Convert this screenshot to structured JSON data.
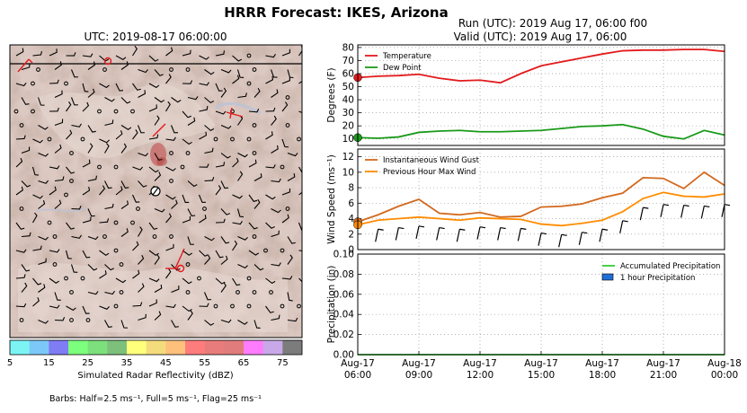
{
  "figure": {
    "title": "HRRR Forecast: IKES, Arizona",
    "map_title": "UTC: 2019-08-17 06:00:00",
    "run_title": "Run (UTC): 2019 Aug 17, 06:00 f00",
    "valid_title": "Valid (UTC): 2019 Aug 17, 06:00",
    "barbs_note": "Barbs: Half=2.5 ms⁻¹, Full=5 ms⁻¹, Flag=25 ms⁻¹",
    "colorbar_label": "Simulated Radar Reflectivity (dBZ)",
    "colorbar_ticks": [
      "5",
      "15",
      "25",
      "35",
      "45",
      "55",
      "65",
      "75"
    ],
    "colorbar_colors": [
      "#7cf4f4",
      "#7cc8f8",
      "#7f7cf4",
      "#7cff7c",
      "#7ce07c",
      "#7cc07c",
      "#ffff7c",
      "#f4dc7c",
      "#ffc07c",
      "#ff7c7c",
      "#e87c7c",
      "#e07c7c",
      "#ff7cff",
      "#c8a8e8",
      "#7c7c7c"
    ]
  },
  "chart_data": [
    {
      "type": "line",
      "panel": "temperature",
      "ylabel": "Degrees (F)",
      "ylim": [
        5,
        82
      ],
      "yticks": [
        "10",
        "20",
        "30",
        "40",
        "50",
        "60",
        "70",
        "80"
      ],
      "grid": true,
      "legend": "top-left",
      "x_hours": [
        0,
        1,
        2,
        3,
        4,
        5,
        6,
        7,
        8,
        9,
        10,
        11,
        12,
        13,
        14,
        15,
        16,
        17,
        18
      ],
      "series": [
        {
          "name": "Temperature",
          "color": "#e31a1c",
          "values": [
            57,
            58,
            58.5,
            59.5,
            56.5,
            54.5,
            55,
            53,
            60,
            66,
            69,
            72,
            75,
            77.5,
            78,
            78,
            78.5,
            78.5,
            77
          ]
        },
        {
          "name": "Dew Point",
          "color": "#1a9a1a",
          "values": [
            11,
            10.5,
            11.5,
            15,
            16,
            16.5,
            15.5,
            15.5,
            16,
            16.5,
            18,
            19.5,
            20,
            21,
            17.5,
            12,
            10,
            16.5,
            13
          ]
        }
      ]
    },
    {
      "type": "line",
      "panel": "wind",
      "ylabel": "Wind Speed (ms⁻¹)",
      "ylim": [
        0,
        13
      ],
      "yticks": [
        "0",
        "2",
        "4",
        "6",
        "8",
        "10",
        "12"
      ],
      "grid": true,
      "legend": "top-left",
      "x_hours": [
        0,
        1,
        2,
        3,
        4,
        5,
        6,
        7,
        8,
        9,
        10,
        11,
        12,
        13,
        14,
        15,
        16,
        17,
        18
      ],
      "series": [
        {
          "name": "Instantaneous Wind Gust",
          "color": "#d2691e",
          "values": [
            3.6,
            4.5,
            5.6,
            6.5,
            4.7,
            4.5,
            4.8,
            4.2,
            4.3,
            5.5,
            5.6,
            5.9,
            6.7,
            7.3,
            9.3,
            9.2,
            7.9,
            10,
            8.3
          ]
        },
        {
          "name": "Previous Hour Max Wind",
          "color": "#ff8c00",
          "values": [
            3.2,
            3.8,
            4.0,
            4.2,
            4.0,
            3.8,
            4.1,
            4.0,
            3.9,
            3.3,
            3.1,
            3.4,
            3.8,
            4.9,
            6.6,
            7.4,
            6.9,
            6.8,
            7.2
          ]
        }
      ],
      "barbs_note": "hourly wind barbs drawn below the lines"
    },
    {
      "type": "line",
      "panel": "precipitation",
      "ylabel": "Precipitation (in)",
      "ylim": [
        0,
        0.1
      ],
      "yticks": [
        "0.00",
        "0.02",
        "0.04",
        "0.06",
        "0.08",
        "0.10"
      ],
      "grid": true,
      "legend": "top-right",
      "x_hours": [
        0,
        1,
        2,
        3,
        4,
        5,
        6,
        7,
        8,
        9,
        10,
        11,
        12,
        13,
        14,
        15,
        16,
        17,
        18
      ],
      "series": [
        {
          "name": "Accumulated Precipitation",
          "color": "#33cc33",
          "values": [
            0,
            0,
            0,
            0,
            0,
            0,
            0,
            0,
            0,
            0,
            0,
            0,
            0,
            0,
            0,
            0,
            0,
            0,
            0
          ]
        },
        {
          "name": "1 hour Precipitation",
          "color": "#1f6fd6",
          "values": [
            0,
            0,
            0,
            0,
            0,
            0,
            0,
            0,
            0,
            0,
            0,
            0,
            0,
            0,
            0,
            0,
            0,
            0,
            0
          ]
        }
      ],
      "xtick_labels": [
        [
          "Aug-17",
          "06:00"
        ],
        [
          "Aug-17",
          "09:00"
        ],
        [
          "Aug-17",
          "12:00"
        ],
        [
          "Aug-17",
          "15:00"
        ],
        [
          "Aug-17",
          "18:00"
        ],
        [
          "Aug-17",
          "21:00"
        ],
        [
          "Aug-18",
          "00:00"
        ]
      ],
      "xtick_hours": [
        0,
        3,
        6,
        9,
        12,
        15,
        18
      ]
    }
  ]
}
